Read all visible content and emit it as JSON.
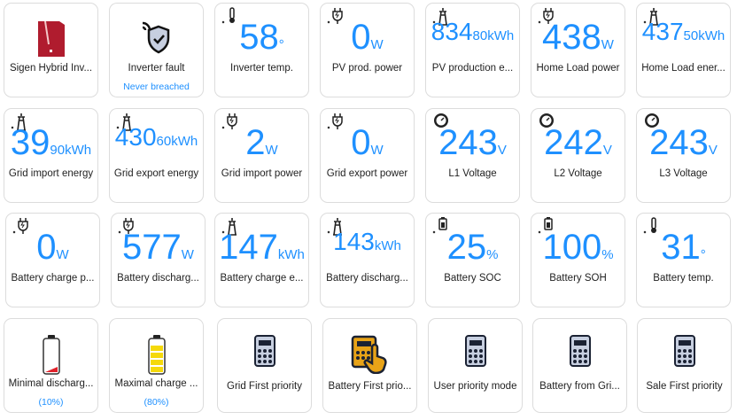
{
  "colors": {
    "accent": "#1e90ff",
    "card_border": "#dcdcdc",
    "brand_red": "#b01c2e",
    "battery_yellow": "#f5d90a",
    "mode_active": "#e8a317"
  },
  "rows": [
    [
      {
        "label": "Sigen Hybrid Inv...",
        "icon": "inverter-device-icon"
      },
      {
        "label": "Inverter fault",
        "sub": "Never breached",
        "icon": "shield-check-icon"
      },
      {
        "label": "Inverter temp.",
        "value": "58",
        "unit": "°",
        "icon": "thermometer-icon"
      },
      {
        "label": "PV prod. power",
        "value": "0",
        "unit": "W",
        "icon": "plug-icon"
      },
      {
        "label": "PV production e...",
        "value": "834",
        "unit": "80kWh",
        "icon": "transmission-tower-icon"
      },
      {
        "label": "Home Load power",
        "value": "438",
        "unit": "W",
        "icon": "plug-icon"
      },
      {
        "label": "Home Load ener...",
        "value": "437",
        "unit": "50kWh",
        "icon": "transmission-tower-icon"
      }
    ],
    [
      {
        "label": "Grid import energy",
        "value": "39",
        "unit": "90kWh",
        "icon": "transmission-tower-icon"
      },
      {
        "label": "Grid export energy",
        "value": "430",
        "unit": "60kWh",
        "icon": "transmission-tower-icon"
      },
      {
        "label": "Grid import power",
        "value": "2",
        "unit": "W",
        "icon": "plug-icon"
      },
      {
        "label": "Grid export power",
        "value": "0",
        "unit": "W",
        "icon": "plug-icon"
      },
      {
        "label": "L1 Voltage",
        "value": "243",
        "unit": "V",
        "icon": "gauge-icon"
      },
      {
        "label": "L2 Voltage",
        "value": "242",
        "unit": "V",
        "icon": "gauge-icon"
      },
      {
        "label": "L3 Voltage",
        "value": "243",
        "unit": "V",
        "icon": "gauge-icon"
      }
    ],
    [
      {
        "label": "Battery charge p...",
        "value": "0",
        "unit": "W",
        "icon": "plug-icon"
      },
      {
        "label": "Battery discharg...",
        "value": "577",
        "unit": "W",
        "icon": "plug-icon"
      },
      {
        "label": "Battery charge e...",
        "value": "147",
        "unit": "kWh",
        "icon": "transmission-tower-icon"
      },
      {
        "label": "Battery discharg...",
        "value": "143",
        "unit": "kWh",
        "icon": "transmission-tower-icon"
      },
      {
        "label": "Battery SOC",
        "value": "25",
        "unit": "%",
        "icon": "battery-icon"
      },
      {
        "label": "Battery SOH",
        "value": "100",
        "unit": "%",
        "icon": "battery-icon"
      },
      {
        "label": "Battery temp.",
        "value": "31",
        "unit": "°",
        "icon": "thermometer-icon"
      }
    ],
    [
      {
        "label": "Minimal discharg...",
        "sub": "(10%)",
        "icon": "battery-low-icon",
        "level": 10
      },
      {
        "label": "Maximal charge ...",
        "sub": "(80%)",
        "icon": "battery-high-icon",
        "level": 80
      },
      {
        "label": "Grid First priority",
        "icon": "calculator-icon"
      },
      {
        "label": "Battery First prio...",
        "icon": "calculator-pointer-icon",
        "active": true
      },
      {
        "label": "User priority mode",
        "icon": "calculator-icon"
      },
      {
        "label": "Battery from Gri...",
        "icon": "calculator-icon"
      },
      {
        "label": "Sale First priority",
        "icon": "calculator-icon"
      }
    ]
  ]
}
